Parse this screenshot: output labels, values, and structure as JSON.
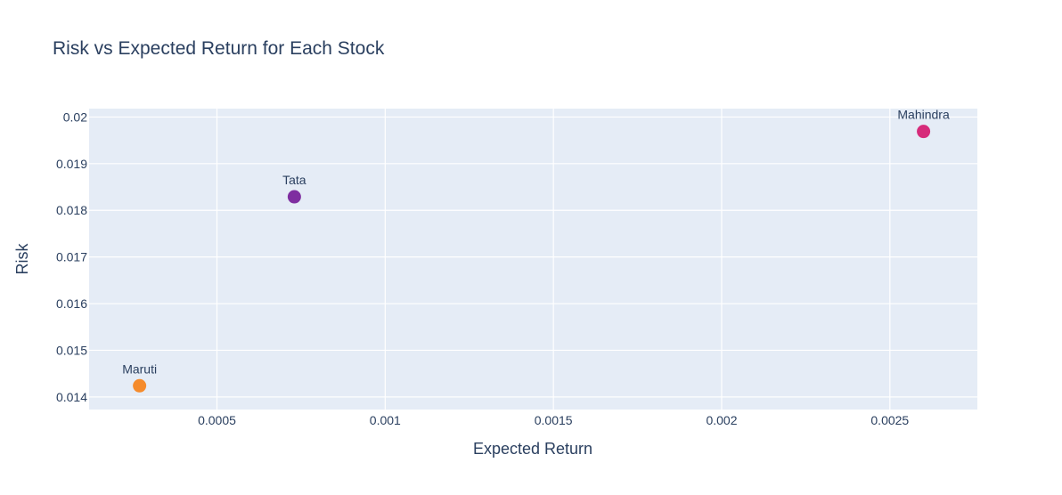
{
  "chart_data": {
    "type": "scatter",
    "title": "Risk vs Expected Return for Each Stock",
    "xlabel": "Expected Return",
    "ylabel": "Risk",
    "xlim": [
      0.00012,
      0.00276
    ],
    "ylim": [
      0.01373,
      0.02018
    ],
    "x_ticks": [
      0.0005,
      0.001,
      0.0015,
      0.002,
      0.0025
    ],
    "x_tick_labels": [
      "0.0005",
      "0.001",
      "0.0015",
      "0.002",
      "0.0025"
    ],
    "y_ticks": [
      0.014,
      0.015,
      0.016,
      0.017,
      0.018,
      0.019,
      0.02
    ],
    "y_tick_labels": [
      "0.014",
      "0.015",
      "0.016",
      "0.017",
      "0.018",
      "0.019",
      "0.02"
    ],
    "grid": true,
    "points": [
      {
        "label": "Maruti",
        "x": 0.00027,
        "y": 0.01424,
        "color": "#f58b2c"
      },
      {
        "label": "Tata",
        "x": 0.00073,
        "y": 0.01829,
        "color": "#7e2ea0"
      },
      {
        "label": "Mahindra",
        "x": 0.0026,
        "y": 0.01969,
        "color": "#d62b7a"
      }
    ]
  }
}
